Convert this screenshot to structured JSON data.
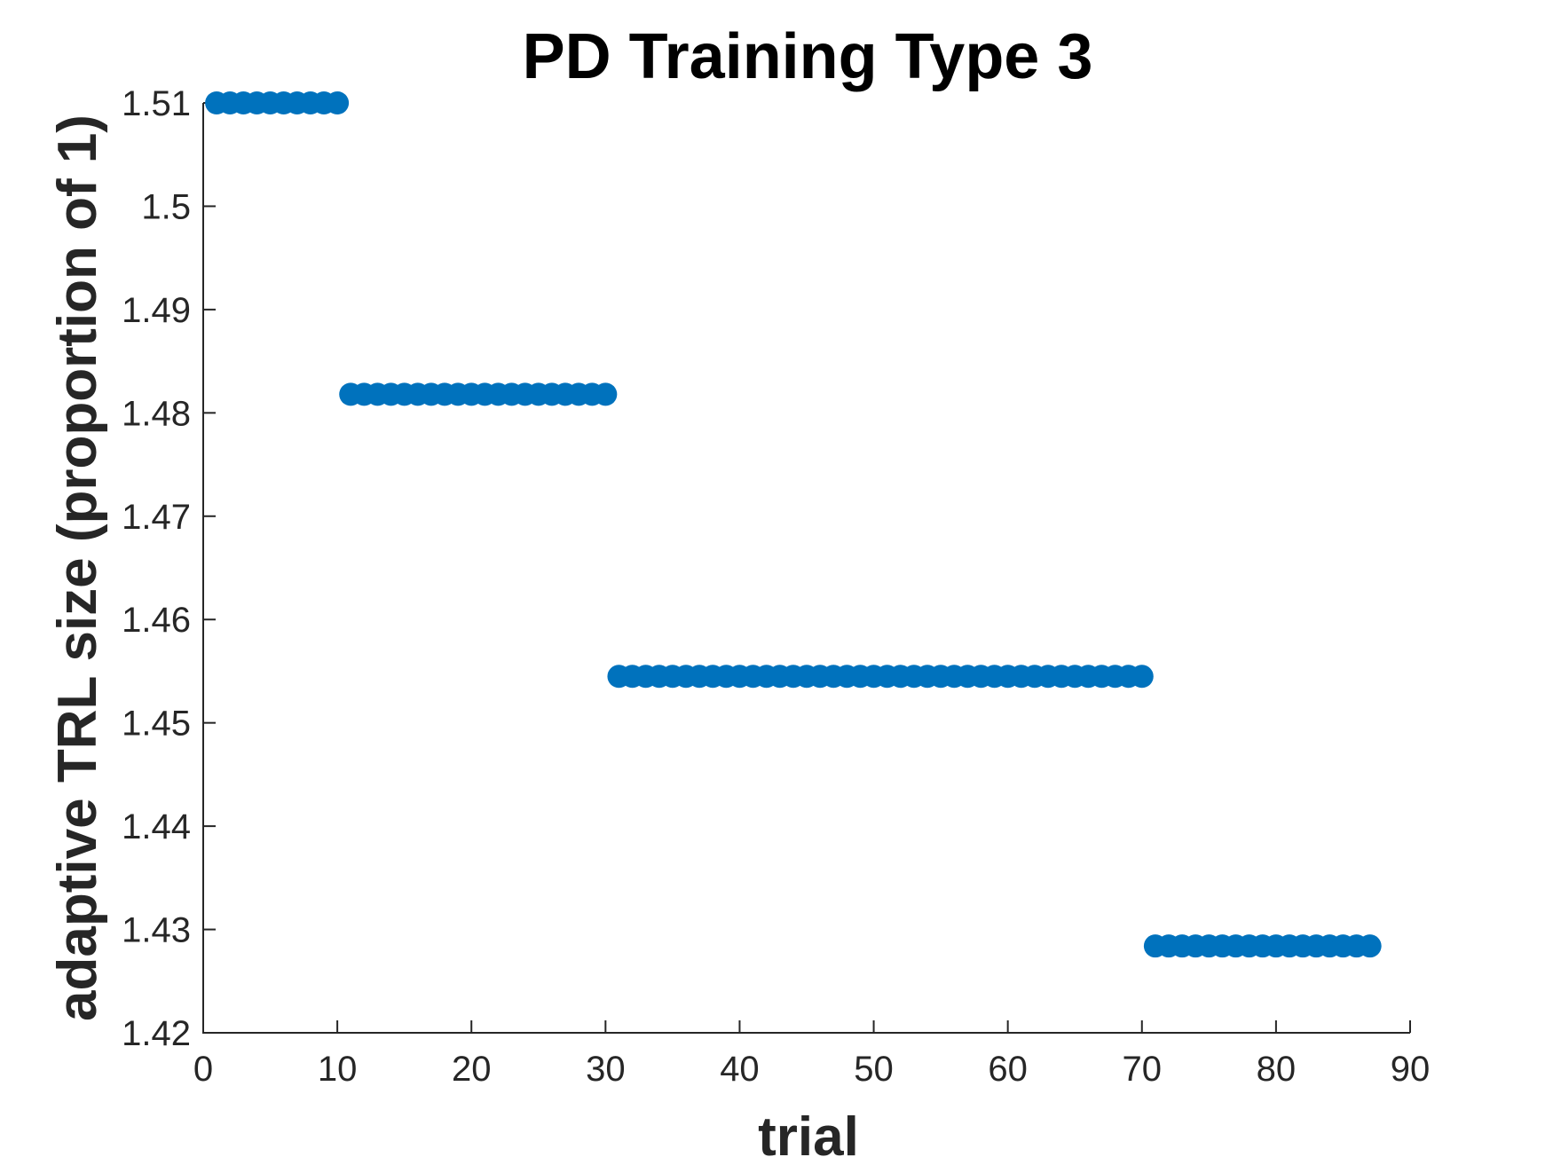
{
  "chart_data": {
    "type": "scatter",
    "title": "PD Training Type 3",
    "xlabel": "trial",
    "ylabel": "adaptive TRL size (proportion of 1)",
    "xlim": [
      0,
      90
    ],
    "ylim": [
      1.42,
      1.51
    ],
    "xticks": [
      "0",
      "10",
      "20",
      "30",
      "40",
      "50",
      "60",
      "70",
      "80",
      "90"
    ],
    "yticks": [
      "1.42",
      "1.43",
      "1.44",
      "1.45",
      "1.46",
      "1.47",
      "1.48",
      "1.49",
      "1.5",
      "1.51"
    ],
    "grid": false,
    "marker_color": "#0072BD",
    "segments": [
      {
        "x_start": 1,
        "x_end": 10,
        "y": 1.51
      },
      {
        "x_start": 11,
        "x_end": 30,
        "y": 1.4818
      },
      {
        "x_start": 31,
        "x_end": 70,
        "y": 1.4545
      },
      {
        "x_start": 71,
        "x_end": 87,
        "y": 1.4284
      }
    ]
  }
}
